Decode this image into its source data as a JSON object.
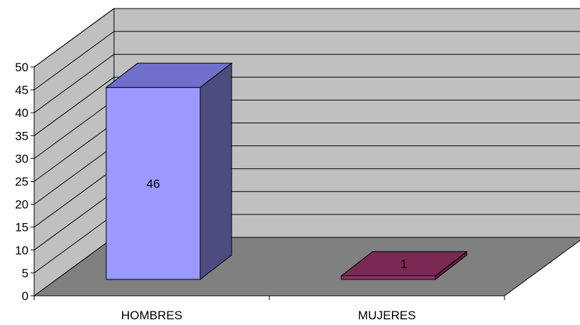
{
  "chart_data": {
    "type": "bar",
    "categories": [
      "HOMBRES",
      "MUJERES"
    ],
    "values": [
      46,
      1
    ],
    "data_labels": [
      "46",
      "1"
    ],
    "ylim": [
      0,
      50
    ],
    "yticks": [
      "0",
      "5",
      "10",
      "15",
      "20",
      "25",
      "30",
      "35",
      "40",
      "45",
      "50"
    ],
    "grid": true,
    "three_d": true,
    "bar_colors": [
      {
        "front": "#9999FF",
        "top": "#7070CC",
        "side": "#4C4C80"
      },
      {
        "front": "#993366",
        "top": "#7A2952",
        "side": "#5C1F3D"
      }
    ],
    "wall_color": "#C0C0C0",
    "floor_color": "#808080"
  }
}
